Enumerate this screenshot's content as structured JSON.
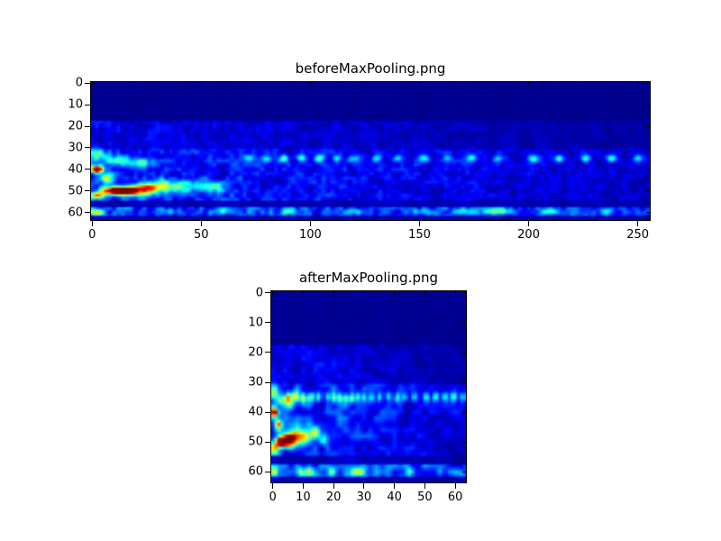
{
  "figure": {
    "background": "#ffffff",
    "colormap_min_color": "#00007f",
    "hotspot_format": "x, y, sigma_x, sigma_y, amplitude",
    "band_format": "row_start, row_end, noise_amp, x_fade"
  },
  "chart_data": [
    {
      "type": "heatmap",
      "title": "beforeMaxPooling.png",
      "colormap": "jet",
      "cols": 256,
      "rows": 64,
      "x_range": [
        -0.5,
        255.5
      ],
      "y_range": [
        -0.5,
        63.5
      ],
      "x_ticks": [
        0,
        50,
        100,
        150,
        200,
        250
      ],
      "y_ticks": [
        0,
        10,
        20,
        30,
        40,
        50,
        60
      ],
      "grid": false,
      "legend": null,
      "xlabel": "",
      "ylabel": "",
      "background_value": 0.008,
      "noise": {
        "seed": 11
      },
      "bands": [
        [
          0,
          17,
          0.015,
          0.3
        ],
        [
          18,
          30,
          0.14,
          0.75
        ],
        [
          31,
          43,
          0.22,
          0.55
        ],
        [
          44,
          54,
          0.24,
          0.65
        ],
        [
          55,
          57,
          0.07,
          0.3
        ],
        [
          58,
          61,
          0.26,
          0.15
        ],
        [
          62,
          63,
          0.06,
          0.2
        ]
      ],
      "hotspots": [
        [
          2,
          40,
          3,
          1.6,
          1.0
        ],
        [
          7,
          44,
          3,
          2,
          0.5
        ],
        [
          10,
          50,
          5,
          1.8,
          1.0
        ],
        [
          17,
          50,
          5,
          2,
          0.95
        ],
        [
          25,
          49,
          5,
          2.4,
          0.6
        ],
        [
          33,
          48,
          6,
          2.6,
          0.45
        ],
        [
          44,
          48,
          6,
          2.6,
          0.3
        ],
        [
          56,
          48,
          5,
          2.4,
          0.32
        ],
        [
          2,
          52,
          3,
          1.6,
          0.55
        ],
        [
          2,
          33,
          4,
          2.5,
          0.35
        ],
        [
          12,
          36,
          6,
          2.5,
          0.3
        ],
        [
          22,
          37,
          5,
          2,
          0.28
        ],
        [
          2,
          60,
          3,
          1.5,
          0.45
        ],
        [
          72,
          35,
          2.2,
          1.7,
          0.25
        ],
        [
          80,
          35,
          2.2,
          1.7,
          0.28
        ],
        [
          88,
          35,
          2.2,
          1.7,
          0.32
        ],
        [
          96,
          35,
          2.2,
          1.7,
          0.3
        ],
        [
          104,
          35,
          2.2,
          1.7,
          0.34
        ],
        [
          112,
          35,
          2.2,
          1.7,
          0.3
        ],
        [
          120,
          35,
          2.2,
          1.7,
          0.28
        ],
        [
          130,
          35,
          2.2,
          1.7,
          0.26
        ],
        [
          140,
          35,
          2.2,
          1.7,
          0.3
        ],
        [
          152,
          35,
          2.2,
          1.7,
          0.28
        ],
        [
          163,
          35,
          2.2,
          1.7,
          0.25
        ],
        [
          174,
          35,
          2.2,
          1.7,
          0.3
        ],
        [
          186,
          35,
          2.2,
          1.7,
          0.28
        ],
        [
          202,
          35,
          2.2,
          1.7,
          0.34
        ],
        [
          214,
          35,
          2.2,
          1.7,
          0.36
        ],
        [
          226,
          35,
          2.2,
          1.7,
          0.33
        ],
        [
          238,
          35,
          2.2,
          1.7,
          0.36
        ],
        [
          250,
          35,
          2.2,
          1.7,
          0.3
        ],
        [
          35,
          59.5,
          4,
          1.3,
          0.2
        ],
        [
          60,
          59.5,
          4,
          1.3,
          0.22
        ],
        [
          90,
          59.5,
          4,
          1.3,
          0.2
        ],
        [
          120,
          59.5,
          4,
          1.3,
          0.22
        ],
        [
          150,
          59.5,
          4,
          1.3,
          0.2
        ],
        [
          170,
          59.5,
          4,
          1.3,
          0.22
        ],
        [
          186,
          59.5,
          7,
          1.4,
          0.3
        ],
        [
          210,
          59.5,
          4,
          1.3,
          0.2
        ],
        [
          235,
          59.5,
          4,
          1.3,
          0.22
        ]
      ]
    },
    {
      "type": "heatmap",
      "title": "afterMaxPooling.png",
      "colormap": "jet",
      "cols": 64,
      "rows": 64,
      "x_range": [
        -0.5,
        63.5
      ],
      "y_range": [
        -0.5,
        63.5
      ],
      "x_ticks": [
        0,
        10,
        20,
        30,
        40,
        50,
        60
      ],
      "y_ticks": [
        0,
        10,
        20,
        30,
        40,
        50,
        60
      ],
      "grid": false,
      "legend": null,
      "xlabel": "",
      "ylabel": "",
      "background_value": 0.008,
      "noise": {
        "seed": 23
      },
      "bands": [
        [
          0,
          17,
          0.018,
          0.3
        ],
        [
          18,
          30,
          0.17,
          0.8
        ],
        [
          31,
          43,
          0.26,
          0.5
        ],
        [
          44,
          54,
          0.28,
          0.65
        ],
        [
          55,
          57,
          0.08,
          0.3
        ],
        [
          58,
          61,
          0.3,
          0.15
        ],
        [
          62,
          63,
          0.07,
          0.2
        ]
      ],
      "hotspots": [
        [
          0.5,
          40,
          1,
          1.6,
          1.0
        ],
        [
          1.8,
          44,
          1,
          2,
          0.5
        ],
        [
          2.5,
          50,
          1.6,
          1.8,
          1.0
        ],
        [
          4.5,
          49.5,
          1.6,
          2,
          0.95
        ],
        [
          6.5,
          49,
          1.6,
          2.4,
          0.6
        ],
        [
          8.5,
          48,
          1.8,
          2.6,
          0.45
        ],
        [
          11,
          48,
          1.8,
          2.6,
          0.32
        ],
        [
          14,
          47,
          1.5,
          2,
          0.4
        ],
        [
          17,
          49,
          1.5,
          2,
          0.3
        ],
        [
          0.5,
          52,
          1,
          1.6,
          0.55
        ],
        [
          0.5,
          33,
          1.2,
          2.5,
          0.35
        ],
        [
          3,
          36,
          1.8,
          2.5,
          0.3
        ],
        [
          5.5,
          37,
          1.4,
          2,
          0.28
        ],
        [
          0.5,
          60,
          1,
          1.5,
          0.45
        ],
        [
          5,
          35,
          1,
          1.6,
          0.4
        ],
        [
          7.5,
          35,
          1,
          1.6,
          0.45
        ],
        [
          10,
          35,
          1,
          1.6,
          0.42
        ],
        [
          12.5,
          35,
          1,
          1.6,
          0.4
        ],
        [
          15,
          35,
          1,
          1.6,
          0.35
        ],
        [
          18,
          35,
          0.9,
          1.5,
          0.28
        ],
        [
          20,
          35,
          0.9,
          1.5,
          0.3
        ],
        [
          22,
          35,
          0.9,
          1.5,
          0.32
        ],
        [
          24,
          35,
          0.9,
          1.5,
          0.3
        ],
        [
          26,
          35,
          0.9,
          1.5,
          0.33
        ],
        [
          28,
          35,
          0.9,
          1.5,
          0.3
        ],
        [
          30,
          35,
          0.9,
          1.5,
          0.28
        ],
        [
          32.5,
          35,
          0.9,
          1.5,
          0.27
        ],
        [
          35,
          35,
          0.9,
          1.5,
          0.3
        ],
        [
          38,
          35,
          0.9,
          1.5,
          0.28
        ],
        [
          41,
          35,
          0.9,
          1.5,
          0.26
        ],
        [
          43.5,
          35,
          0.9,
          1.5,
          0.3
        ],
        [
          46.5,
          35,
          0.9,
          1.5,
          0.29
        ],
        [
          50.5,
          35,
          0.9,
          1.5,
          0.35
        ],
        [
          53.5,
          35,
          0.9,
          1.5,
          0.37
        ],
        [
          56.5,
          35,
          0.9,
          1.5,
          0.34
        ],
        [
          59.5,
          35,
          0.9,
          1.5,
          0.37
        ],
        [
          62.5,
          35,
          0.9,
          1.5,
          0.31
        ],
        [
          9,
          60,
          1.2,
          1.3,
          0.3
        ],
        [
          12,
          60,
          1.2,
          1.3,
          0.32
        ],
        [
          19,
          60,
          1.2,
          1.3,
          0.3
        ],
        [
          27,
          60,
          1.5,
          1.3,
          0.35
        ],
        [
          29,
          60,
          1.2,
          1.3,
          0.3
        ],
        [
          45,
          60,
          1.2,
          1.3,
          0.32
        ],
        [
          55,
          60,
          1.2,
          1.3,
          0.25
        ]
      ]
    }
  ]
}
